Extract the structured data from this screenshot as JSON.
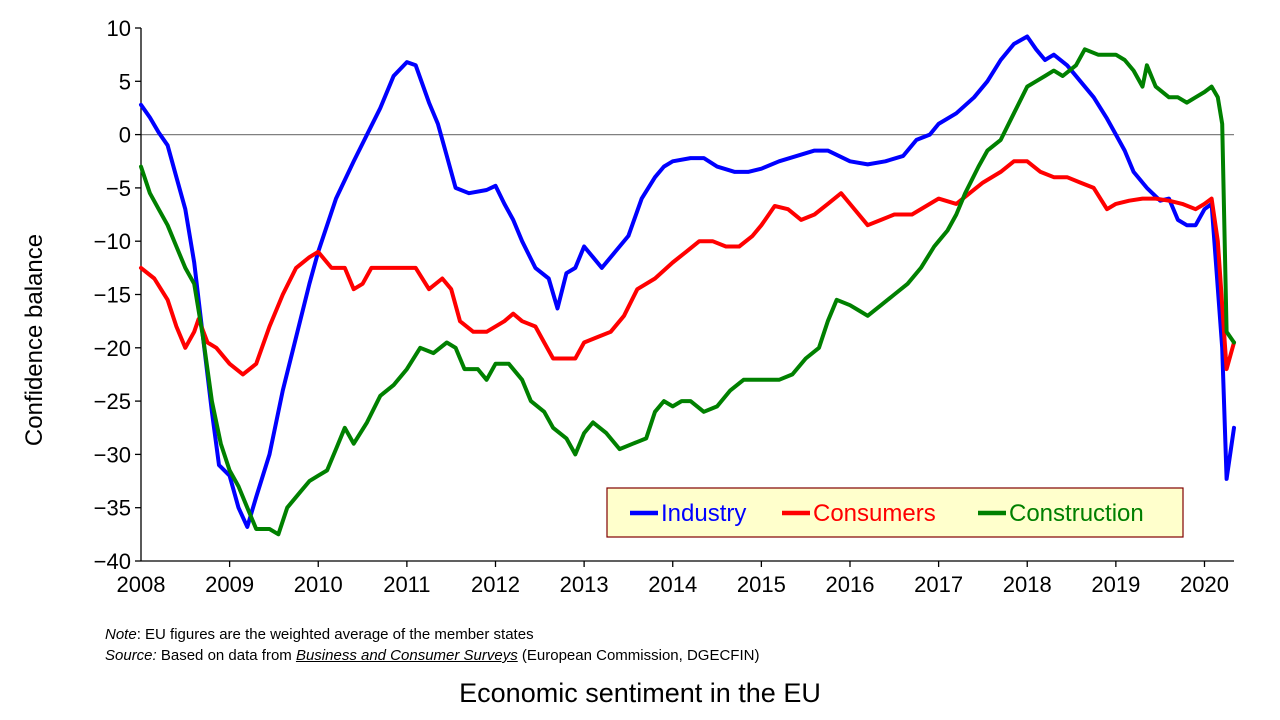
{
  "chart_data": {
    "type": "line",
    "ylabel": "Confidence balance",
    "xlabel": "",
    "ylim": [
      -40,
      10
    ],
    "xlim": [
      2008.0,
      2020.333
    ],
    "y_ticks": [
      10,
      5,
      0,
      -5,
      -10,
      -15,
      -20,
      -25,
      -30,
      -35,
      -40
    ],
    "y_tick_labels": [
      "10",
      "5",
      "0",
      "−5",
      "−10",
      "−15",
      "−20",
      "−25",
      "−30",
      "−35",
      "−40"
    ],
    "x_tick_labels": [
      "2008",
      "2009",
      "2010",
      "2011",
      "2012",
      "2013",
      "2014",
      "2015",
      "2016",
      "2017",
      "2018",
      "2019",
      "2020"
    ],
    "zero_line": true,
    "legend_position": "bottom-right",
    "series": [
      {
        "name": "Industry",
        "color": "#0000ff",
        "points": [
          [
            2008.0,
            2.8
          ],
          [
            2008.1,
            1.6
          ],
          [
            2008.2,
            0.2
          ],
          [
            2008.3,
            -1
          ],
          [
            2008.4,
            -4
          ],
          [
            2008.5,
            -7
          ],
          [
            2008.6,
            -12
          ],
          [
            2008.7,
            -19
          ],
          [
            2008.8,
            -26
          ],
          [
            2008.88,
            -31
          ],
          [
            2009.0,
            -32
          ],
          [
            2009.1,
            -35
          ],
          [
            2009.2,
            -36.8
          ],
          [
            2009.3,
            -34
          ],
          [
            2009.45,
            -30
          ],
          [
            2009.6,
            -24
          ],
          [
            2009.75,
            -19
          ],
          [
            2009.9,
            -14
          ],
          [
            2010.0,
            -11
          ],
          [
            2010.2,
            -6
          ],
          [
            2010.4,
            -2.5
          ],
          [
            2010.55,
            0
          ],
          [
            2010.7,
            2.5
          ],
          [
            2010.85,
            5.5
          ],
          [
            2011.0,
            6.8
          ],
          [
            2011.1,
            6.5
          ],
          [
            2011.25,
            3
          ],
          [
            2011.35,
            1
          ],
          [
            2011.45,
            -2
          ],
          [
            2011.55,
            -5
          ],
          [
            2011.7,
            -5.5
          ],
          [
            2011.9,
            -5.2
          ],
          [
            2012.0,
            -4.8
          ],
          [
            2012.1,
            -6.5
          ],
          [
            2012.2,
            -8
          ],
          [
            2012.3,
            -10
          ],
          [
            2012.45,
            -12.5
          ],
          [
            2012.6,
            -13.5
          ],
          [
            2012.7,
            -16.3
          ],
          [
            2012.8,
            -13
          ],
          [
            2012.9,
            -12.5
          ],
          [
            2013.0,
            -10.5
          ],
          [
            2013.1,
            -11.5
          ],
          [
            2013.2,
            -12.5
          ],
          [
            2013.35,
            -11
          ],
          [
            2013.5,
            -9.5
          ],
          [
            2013.65,
            -6
          ],
          [
            2013.8,
            -4
          ],
          [
            2013.9,
            -3
          ],
          [
            2014.0,
            -2.5
          ],
          [
            2014.2,
            -2.2
          ],
          [
            2014.35,
            -2.2
          ],
          [
            2014.5,
            -3
          ],
          [
            2014.7,
            -3.5
          ],
          [
            2014.85,
            -3.5
          ],
          [
            2015.0,
            -3.2
          ],
          [
            2015.2,
            -2.5
          ],
          [
            2015.4,
            -2
          ],
          [
            2015.6,
            -1.5
          ],
          [
            2015.75,
            -1.5
          ],
          [
            2016.0,
            -2.5
          ],
          [
            2016.2,
            -2.8
          ],
          [
            2016.4,
            -2.5
          ],
          [
            2016.6,
            -2
          ],
          [
            2016.75,
            -0.5
          ],
          [
            2016.9,
            0
          ],
          [
            2017.0,
            1
          ],
          [
            2017.2,
            2
          ],
          [
            2017.4,
            3.5
          ],
          [
            2017.55,
            5
          ],
          [
            2017.7,
            7
          ],
          [
            2017.85,
            8.5
          ],
          [
            2018.0,
            9.2
          ],
          [
            2018.1,
            8
          ],
          [
            2018.2,
            7
          ],
          [
            2018.3,
            7.5
          ],
          [
            2018.45,
            6.5
          ],
          [
            2018.6,
            5
          ],
          [
            2018.75,
            3.5
          ],
          [
            2018.9,
            1.5
          ],
          [
            2019.0,
            0
          ],
          [
            2019.1,
            -1.5
          ],
          [
            2019.2,
            -3.5
          ],
          [
            2019.35,
            -5
          ],
          [
            2019.5,
            -6.2
          ],
          [
            2019.6,
            -6
          ],
          [
            2019.7,
            -8
          ],
          [
            2019.8,
            -8.5
          ],
          [
            2019.9,
            -8.5
          ],
          [
            2020.0,
            -7
          ],
          [
            2020.08,
            -6.5
          ],
          [
            2020.2,
            -20
          ],
          [
            2020.25,
            -32.3
          ],
          [
            2020.333,
            -27.5
          ]
        ]
      },
      {
        "name": "Consumers",
        "color": "#ff0000",
        "points": [
          [
            2008.0,
            -12.5
          ],
          [
            2008.15,
            -13.5
          ],
          [
            2008.3,
            -15.5
          ],
          [
            2008.4,
            -18
          ],
          [
            2008.5,
            -20
          ],
          [
            2008.6,
            -18.5
          ],
          [
            2008.65,
            -17.3
          ],
          [
            2008.75,
            -19.5
          ],
          [
            2008.85,
            -20
          ],
          [
            2009.0,
            -21.5
          ],
          [
            2009.15,
            -22.5
          ],
          [
            2009.3,
            -21.5
          ],
          [
            2009.45,
            -18
          ],
          [
            2009.6,
            -15
          ],
          [
            2009.75,
            -12.5
          ],
          [
            2009.9,
            -11.5
          ],
          [
            2010.0,
            -11
          ],
          [
            2010.15,
            -12.5
          ],
          [
            2010.3,
            -12.5
          ],
          [
            2010.4,
            -14.5
          ],
          [
            2010.5,
            -14
          ],
          [
            2010.6,
            -12.5
          ],
          [
            2010.8,
            -12.5
          ],
          [
            2011.0,
            -12.5
          ],
          [
            2011.1,
            -12.5
          ],
          [
            2011.25,
            -14.5
          ],
          [
            2011.4,
            -13.5
          ],
          [
            2011.5,
            -14.5
          ],
          [
            2011.6,
            -17.5
          ],
          [
            2011.75,
            -18.5
          ],
          [
            2011.9,
            -18.5
          ],
          [
            2012.1,
            -17.5
          ],
          [
            2012.2,
            -16.8
          ],
          [
            2012.3,
            -17.5
          ],
          [
            2012.45,
            -18
          ],
          [
            2012.55,
            -19.5
          ],
          [
            2012.65,
            -21
          ],
          [
            2012.8,
            -21
          ],
          [
            2012.9,
            -21
          ],
          [
            2013.0,
            -19.5
          ],
          [
            2013.15,
            -19
          ],
          [
            2013.3,
            -18.5
          ],
          [
            2013.45,
            -17
          ],
          [
            2013.6,
            -14.5
          ],
          [
            2013.8,
            -13.5
          ],
          [
            2014.0,
            -12
          ],
          [
            2014.15,
            -11
          ],
          [
            2014.3,
            -10
          ],
          [
            2014.45,
            -10
          ],
          [
            2014.6,
            -10.5
          ],
          [
            2014.75,
            -10.5
          ],
          [
            2014.9,
            -9.5
          ],
          [
            2015.0,
            -8.5
          ],
          [
            2015.15,
            -6.7
          ],
          [
            2015.3,
            -7
          ],
          [
            2015.45,
            -8
          ],
          [
            2015.6,
            -7.5
          ],
          [
            2015.75,
            -6.5
          ],
          [
            2015.9,
            -5.5
          ],
          [
            2016.0,
            -6.5
          ],
          [
            2016.2,
            -8.5
          ],
          [
            2016.35,
            -8
          ],
          [
            2016.5,
            -7.5
          ],
          [
            2016.7,
            -7.5
          ],
          [
            2016.9,
            -6.5
          ],
          [
            2017.0,
            -6
          ],
          [
            2017.2,
            -6.5
          ],
          [
            2017.35,
            -5.5
          ],
          [
            2017.5,
            -4.5
          ],
          [
            2017.7,
            -3.5
          ],
          [
            2017.85,
            -2.5
          ],
          [
            2018.0,
            -2.5
          ],
          [
            2018.15,
            -3.5
          ],
          [
            2018.3,
            -4
          ],
          [
            2018.45,
            -4
          ],
          [
            2018.6,
            -4.5
          ],
          [
            2018.75,
            -5
          ],
          [
            2018.9,
            -7
          ],
          [
            2019.0,
            -6.5
          ],
          [
            2019.15,
            -6.2
          ],
          [
            2019.3,
            -6
          ],
          [
            2019.45,
            -6
          ],
          [
            2019.6,
            -6.2
          ],
          [
            2019.75,
            -6.5
          ],
          [
            2019.9,
            -7
          ],
          [
            2020.0,
            -6.5
          ],
          [
            2020.08,
            -6
          ],
          [
            2020.15,
            -10
          ],
          [
            2020.25,
            -22
          ],
          [
            2020.333,
            -19.5
          ]
        ]
      },
      {
        "name": "Construction",
        "color": "#008000",
        "points": [
          [
            2008.0,
            -3
          ],
          [
            2008.1,
            -5.5
          ],
          [
            2008.2,
            -7
          ],
          [
            2008.3,
            -8.5
          ],
          [
            2008.4,
            -10.5
          ],
          [
            2008.5,
            -12.5
          ],
          [
            2008.6,
            -14
          ],
          [
            2008.7,
            -19
          ],
          [
            2008.8,
            -25
          ],
          [
            2008.9,
            -29
          ],
          [
            2009.0,
            -31.5
          ],
          [
            2009.1,
            -33
          ],
          [
            2009.2,
            -35
          ],
          [
            2009.3,
            -37
          ],
          [
            2009.45,
            -37
          ],
          [
            2009.55,
            -37.5
          ],
          [
            2009.65,
            -35
          ],
          [
            2009.8,
            -33.5
          ],
          [
            2009.9,
            -32.5
          ],
          [
            2010.0,
            -32
          ],
          [
            2010.1,
            -31.5
          ],
          [
            2010.2,
            -29.5
          ],
          [
            2010.3,
            -27.5
          ],
          [
            2010.4,
            -29
          ],
          [
            2010.55,
            -27
          ],
          [
            2010.7,
            -24.5
          ],
          [
            2010.85,
            -23.5
          ],
          [
            2011.0,
            -22
          ],
          [
            2011.15,
            -20
          ],
          [
            2011.3,
            -20.5
          ],
          [
            2011.45,
            -19.5
          ],
          [
            2011.55,
            -20
          ],
          [
            2011.65,
            -22
          ],
          [
            2011.8,
            -22
          ],
          [
            2011.9,
            -23
          ],
          [
            2012.0,
            -21.5
          ],
          [
            2012.15,
            -21.5
          ],
          [
            2012.3,
            -23
          ],
          [
            2012.4,
            -25
          ],
          [
            2012.55,
            -26
          ],
          [
            2012.65,
            -27.5
          ],
          [
            2012.8,
            -28.5
          ],
          [
            2012.9,
            -30
          ],
          [
            2013.0,
            -28
          ],
          [
            2013.1,
            -27
          ],
          [
            2013.25,
            -28
          ],
          [
            2013.4,
            -29.5
          ],
          [
            2013.55,
            -29
          ],
          [
            2013.7,
            -28.5
          ],
          [
            2013.8,
            -26
          ],
          [
            2013.9,
            -25
          ],
          [
            2014.0,
            -25.5
          ],
          [
            2014.1,
            -25
          ],
          [
            2014.2,
            -25
          ],
          [
            2014.35,
            -26
          ],
          [
            2014.5,
            -25.5
          ],
          [
            2014.65,
            -24
          ],
          [
            2014.8,
            -23
          ],
          [
            2015.0,
            -23
          ],
          [
            2015.2,
            -23
          ],
          [
            2015.35,
            -22.5
          ],
          [
            2015.5,
            -21
          ],
          [
            2015.65,
            -20
          ],
          [
            2015.75,
            -17.5
          ],
          [
            2015.85,
            -15.5
          ],
          [
            2016.0,
            -16
          ],
          [
            2016.1,
            -16.5
          ],
          [
            2016.2,
            -17
          ],
          [
            2016.35,
            -16
          ],
          [
            2016.5,
            -15
          ],
          [
            2016.65,
            -14
          ],
          [
            2016.8,
            -12.5
          ],
          [
            2016.95,
            -10.5
          ],
          [
            2017.0,
            -10
          ],
          [
            2017.1,
            -9
          ],
          [
            2017.2,
            -7.5
          ],
          [
            2017.3,
            -5.5
          ],
          [
            2017.45,
            -3
          ],
          [
            2017.55,
            -1.5
          ],
          [
            2017.7,
            -0.5
          ],
          [
            2017.85,
            2
          ],
          [
            2018.0,
            4.5
          ],
          [
            2018.1,
            5
          ],
          [
            2018.2,
            5.5
          ],
          [
            2018.3,
            6
          ],
          [
            2018.4,
            5.5
          ],
          [
            2018.55,
            6.5
          ],
          [
            2018.65,
            8
          ],
          [
            2018.8,
            7.5
          ],
          [
            2018.9,
            7.5
          ],
          [
            2019.0,
            7.5
          ],
          [
            2019.1,
            7
          ],
          [
            2019.2,
            6
          ],
          [
            2019.3,
            4.5
          ],
          [
            2019.35,
            6.5
          ],
          [
            2019.45,
            4.5
          ],
          [
            2019.6,
            3.5
          ],
          [
            2019.7,
            3.5
          ],
          [
            2019.8,
            3
          ],
          [
            2019.9,
            3.5
          ],
          [
            2020.0,
            4
          ],
          [
            2020.08,
            4.5
          ],
          [
            2020.15,
            3.5
          ],
          [
            2020.2,
            1
          ],
          [
            2020.25,
            -18.5
          ],
          [
            2020.333,
            -19.5
          ]
        ]
      }
    ]
  },
  "footer": {
    "note_prefix": "Note",
    "note_text": ": EU figures are the weighted average of the member states",
    "source_prefix": "Source:",
    "source_text_before": " Based on data from ",
    "source_link": "Business and Consumer Surveys",
    "source_text_after": " (European Commission, DGECFIN)"
  },
  "caption": "Economic sentiment in the EU",
  "colors": {
    "legend_background": "#ffffcc",
    "legend_border": "#800000",
    "zero_line": "#808080"
  }
}
